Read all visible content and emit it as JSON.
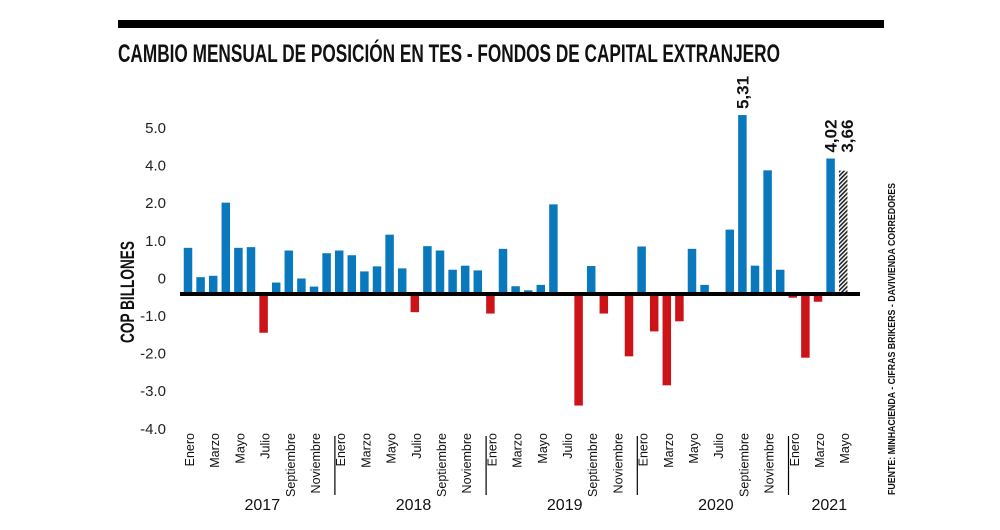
{
  "chart_data": {
    "type": "bar",
    "title": "CAMBIO MENSUAL DE POSICIÓN EN TES - FONDOS DE CAPITAL EXTRANJERO",
    "ylabel": "COP BILLONES",
    "source": "FUENTE: MINHACIENDA - CIFRAS BRIKERS - DAVIVIENDA CORREDORES",
    "y_tick_labels": [
      "5.0",
      "4.0",
      "2.0",
      "1.0",
      "0",
      "-1.0",
      "-2.0",
      "-3.0",
      "-4.0"
    ],
    "month_labels": [
      "Enero",
      "Marzo",
      "Mayo",
      "Julio",
      "Septiembre",
      "Noviembre"
    ],
    "colors": {
      "positive": "#0a78bd",
      "negative": "#cc1418",
      "projected": "#222222",
      "axis": "#000000"
    },
    "years": [
      {
        "year": "2017",
        "values": [
          1.37,
          0.5,
          0.54,
          2.71,
          1.37,
          1.39,
          -1.15,
          0.34,
          1.29,
          0.46,
          0.22,
          1.21
        ]
      },
      {
        "year": "2018",
        "values": [
          1.29,
          1.15,
          0.67,
          0.82,
          1.76,
          0.76,
          -0.54,
          1.42,
          1.29,
          0.72,
          0.84,
          0.7
        ]
      },
      {
        "year": "2019",
        "values": [
          -0.58,
          1.34,
          0.23,
          0.11,
          0.27,
          2.66,
          0,
          -3.31,
          0.83,
          -0.58,
          0,
          -1.85
        ]
      },
      {
        "year": "2020",
        "values": [
          1.41,
          -1.11,
          -2.71,
          -0.81,
          1.34,
          0.27,
          0,
          1.91,
          5.31,
          0.84,
          3.67,
          0.72
        ]
      },
      {
        "year": "2021",
        "values": [
          -0.11,
          -1.89,
          -0.23,
          4.02,
          3.66
        ],
        "projected_last": true
      }
    ],
    "data_labels": [
      {
        "year": "2020",
        "month": 9,
        "text": "5,31"
      },
      {
        "year": "2021",
        "month": 4,
        "text": "4,02"
      },
      {
        "year": "2021",
        "month": 5,
        "text": "3,66"
      }
    ]
  }
}
